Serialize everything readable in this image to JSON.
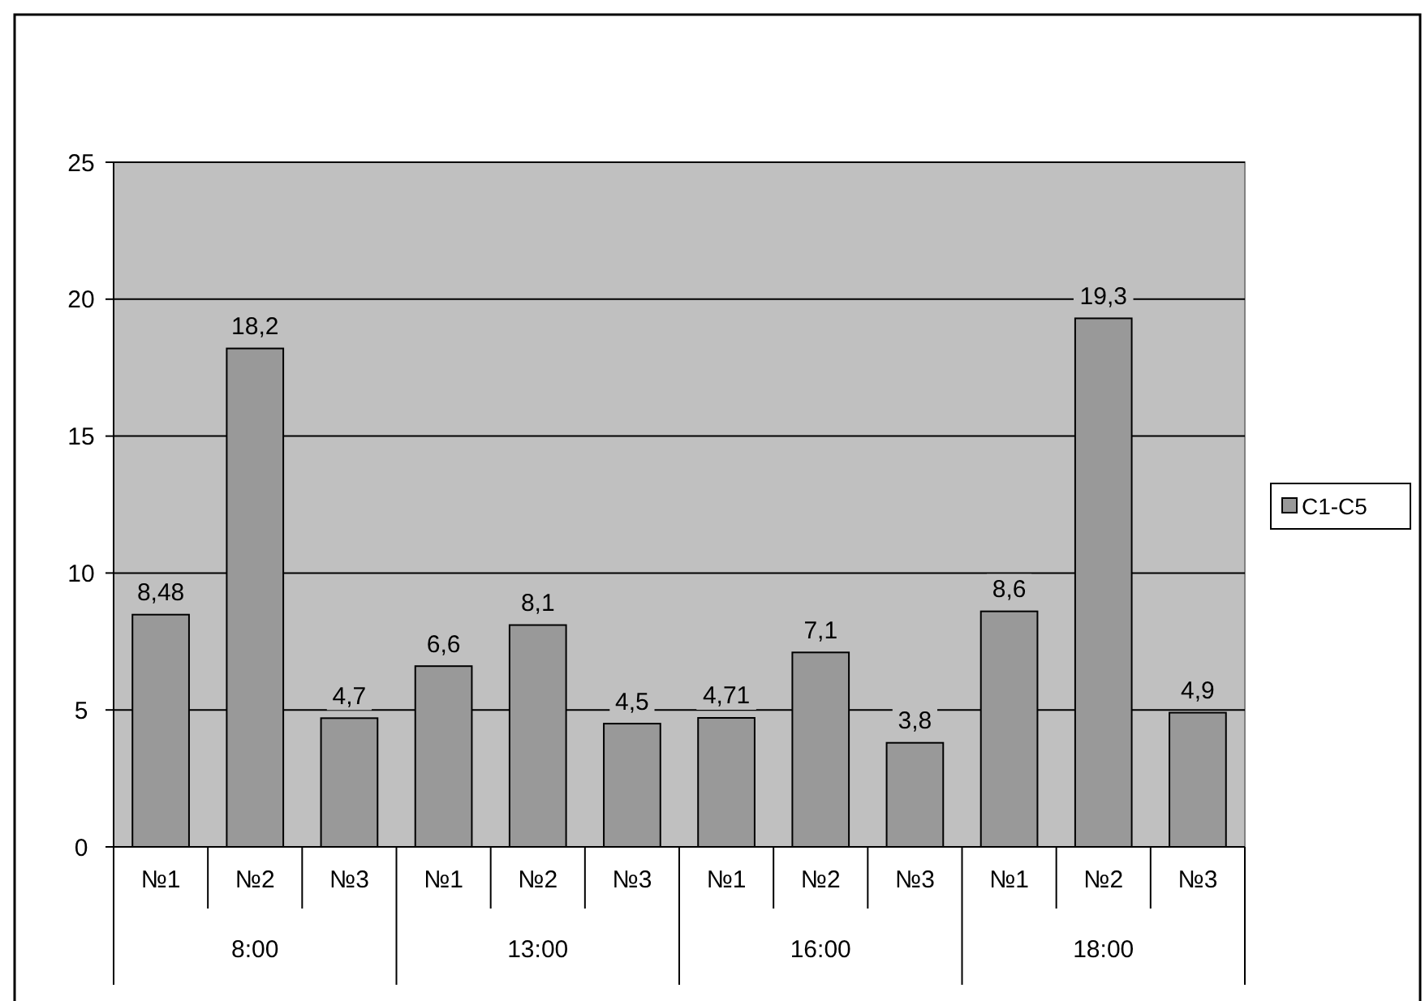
{
  "chart_data": {
    "type": "bar",
    "categories": [
      "№1",
      "№2",
      "№3",
      "№1",
      "№2",
      "№3",
      "№1",
      "№2",
      "№3",
      "№1",
      "№2",
      "№3"
    ],
    "series": [
      {
        "name": "C1-C5",
        "color": "#999999",
        "values": [
          8.48,
          18.2,
          4.7,
          6.6,
          8.1,
          4.5,
          4.71,
          7.1,
          3.8,
          8.6,
          19.3,
          4.9
        ],
        "value_labels": [
          "8,48",
          "18,2",
          "4,7",
          "6,6",
          "8,1",
          "4,5",
          "4,71",
          "7,1",
          "3,8",
          "8,6",
          "19,3",
          "4,9"
        ]
      }
    ],
    "annotations": [
      "8:00",
      "13:00",
      "16:00",
      "18:00"
    ],
    "ylim": [
      0,
      25
    ],
    "yticks": [
      0,
      5,
      10,
      15,
      20,
      25
    ],
    "grid": "y",
    "legend": "right"
  }
}
